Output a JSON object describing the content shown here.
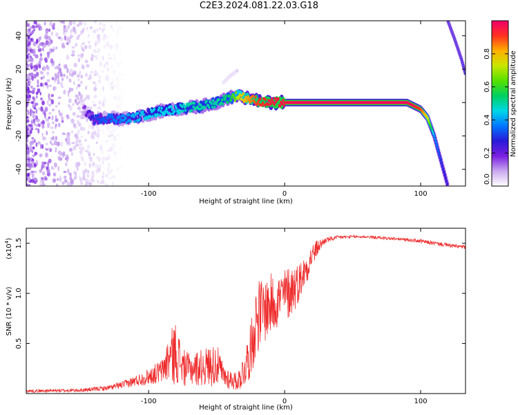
{
  "title": "C2E3.2024.081.22.03.G18",
  "colors": {
    "snr_line": "#ee2a2a",
    "axis": "#000000"
  },
  "chart_data": [
    {
      "type": "heatmap",
      "xlabel": "Height of straight line (km)",
      "ylabel": "Frequency (Hz)",
      "xlim": [
        -190,
        133
      ],
      "ylim": [
        -50,
        49
      ],
      "xticks": [
        -100,
        0,
        100
      ],
      "xtick_labels": [
        "-100",
        "0",
        "100"
      ],
      "yticks": [
        -40,
        -20,
        0,
        20,
        40
      ],
      "ytick_labels": [
        "-40",
        "-20",
        "0",
        "20",
        "40"
      ],
      "colorbar": {
        "label": "Normalized spectral amplitude",
        "range": [
          0,
          1
        ],
        "ticks": [
          0.0,
          0.2,
          0.4,
          0.6,
          0.8
        ],
        "tick_labels": [
          "0.0",
          "0.2",
          "0.4",
          "0.6",
          "0.8"
        ],
        "colormap": [
          "#ffffff",
          "#c9a8ef",
          "#7a1fe0",
          "#2a1ad8",
          "#0077ff",
          "#00d7e8",
          "#00d060",
          "#55e000",
          "#c8e600",
          "#ffb000",
          "#ff3020",
          "#f0006a"
        ]
      },
      "ridge": {
        "x": [
          -148,
          -140,
          -130,
          -120,
          -110,
          -100,
          -90,
          -80,
          -70,
          -60,
          -50,
          -40,
          -35,
          -30,
          -25,
          -20,
          -15,
          -10,
          -5,
          0,
          5,
          10,
          20,
          40,
          60,
          80,
          90,
          95,
          100,
          105,
          110,
          115,
          120
        ],
        "y": [
          -4,
          -10,
          -9,
          -10,
          -9,
          -7,
          -5,
          -4,
          -3,
          -2,
          0,
          3,
          4,
          3,
          2,
          1,
          0,
          0,
          0,
          0,
          0,
          0,
          0,
          0,
          0,
          0,
          0,
          -2,
          -4,
          -9,
          -20,
          -35,
          -50
        ],
        "amplitude": [
          0.15,
          0.3,
          0.35,
          0.38,
          0.42,
          0.45,
          0.45,
          0.45,
          0.5,
          0.5,
          0.5,
          0.55,
          0.7,
          0.8,
          0.85,
          0.9,
          0.92,
          0.95,
          0.95,
          0.95,
          0.97,
          0.98,
          0.98,
          0.98,
          0.98,
          0.98,
          0.98,
          0.95,
          0.9,
          0.75,
          0.4,
          0.3,
          0.25
        ]
      },
      "alias_ridge": {
        "x": [
          120,
          125,
          130,
          133
        ],
        "y": [
          49,
          38,
          26,
          17
        ],
        "amplitude": [
          0.3,
          0.3,
          0.3,
          0.3
        ]
      },
      "secondary_ridge": {
        "x": [
          -45,
          -40,
          -35
        ],
        "y": [
          12,
          16,
          19
        ],
        "amplitude": [
          0.05,
          0.06,
          0.06
        ]
      },
      "noise_region": {
        "x_range": [
          -190,
          -118
        ],
        "y_range": [
          -50,
          49
        ]
      }
    },
    {
      "type": "line",
      "xlabel": "Height of straight line (km)",
      "ylabel": "SNR (10 * v/v)",
      "y_multiplier": "(x10^4)",
      "xlim": [
        -190,
        133
      ],
      "ylim": [
        0,
        16500
      ],
      "xticks": [
        -100,
        0,
        100
      ],
      "xtick_labels": [
        "-100",
        "0",
        "100"
      ],
      "yticks": [
        5000,
        10000,
        15000
      ],
      "ytick_labels": [
        "0.5",
        "1.0",
        "1.5"
      ],
      "envelope": {
        "x": [
          -190,
          -150,
          -130,
          -120,
          -110,
          -100,
          -90,
          -85,
          -80,
          -75,
          -70,
          -60,
          -50,
          -45,
          -40,
          -35,
          -30,
          -25,
          -22,
          -20,
          -15,
          -10,
          -5,
          0,
          5,
          10,
          15,
          20,
          25,
          30,
          40,
          50,
          60,
          70,
          80,
          90,
          100,
          110,
          120,
          133
        ],
        "low": [
          100,
          150,
          300,
          500,
          700,
          900,
          1000,
          900,
          800,
          700,
          700,
          700,
          700,
          500,
          400,
          300,
          500,
          1500,
          3000,
          4000,
          5000,
          5500,
          6500,
          7000,
          7500,
          9000,
          10500,
          12500,
          14000,
          15000,
          15400,
          15500,
          15500,
          15400,
          15300,
          15200,
          15000,
          14800,
          14600,
          14400
        ],
        "high": [
          400,
          500,
          800,
          1200,
          1800,
          2500,
          3500,
          6000,
          7300,
          4500,
          4000,
          4500,
          5000,
          3000,
          2500,
          2000,
          4000,
          7000,
          10000,
          11500,
          11500,
          12000,
          12000,
          12500,
          13000,
          13000,
          13800,
          15000,
          15400,
          15600,
          15800,
          15800,
          15800,
          15700,
          15600,
          15500,
          15400,
          15200,
          15000,
          14800
        ]
      }
    }
  ]
}
